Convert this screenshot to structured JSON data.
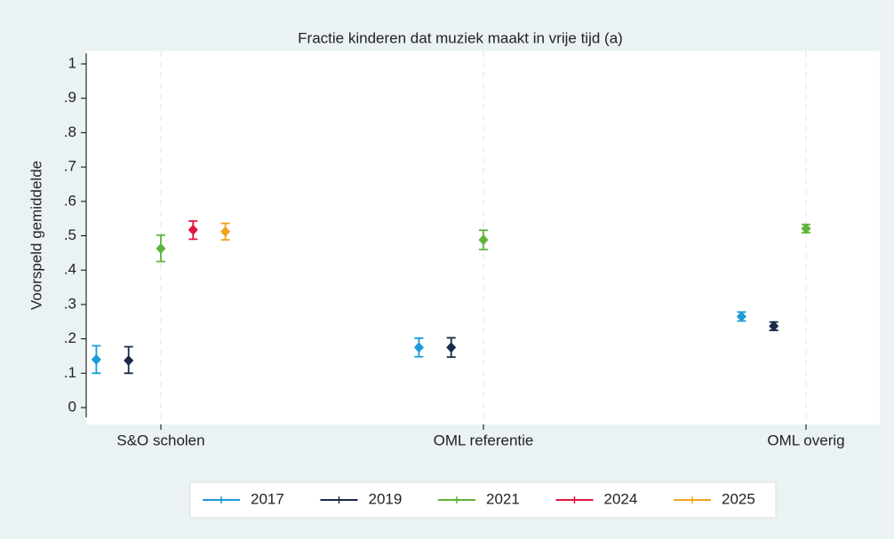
{
  "chart_data": {
    "type": "errorbar",
    "title": "Fractie kinderen dat muziek maakt in vrije tijd (a)",
    "y_label": "Voorspeld gemiddelde",
    "categories": [
      "S&O scholen",
      "OML referentie",
      "OML overig"
    ],
    "series": [
      {
        "name": "2017",
        "color": "#1b9bd7",
        "values": [
          0.14,
          0.175,
          0.265
        ],
        "ci_low": [
          0.1,
          0.148,
          0.252
        ],
        "ci_high": [
          0.18,
          0.202,
          0.278
        ]
      },
      {
        "name": "2019",
        "color": "#1a2a48",
        "values": [
          0.137,
          0.175,
          0.237
        ],
        "ci_low": [
          0.1,
          0.147,
          0.225
        ],
        "ci_high": [
          0.177,
          0.203,
          0.249
        ]
      },
      {
        "name": "2021",
        "color": "#5cb43a",
        "values": [
          0.463,
          0.488,
          0.521
        ],
        "ci_low": [
          0.425,
          0.46,
          0.509
        ],
        "ci_high": [
          0.502,
          0.516,
          0.533
        ]
      },
      {
        "name": "2024",
        "color": "#e0163f",
        "values": [
          0.517,
          null,
          null
        ],
        "ci_low": [
          0.49,
          null,
          null
        ],
        "ci_high": [
          0.543,
          null,
          null
        ]
      },
      {
        "name": "2025",
        "color": "#f2a21f",
        "values": [
          0.512,
          null,
          null
        ],
        "ci_low": [
          0.488,
          null,
          null
        ],
        "ci_high": [
          0.536,
          null,
          null
        ]
      }
    ],
    "ylim": [
      0,
      1
    ],
    "yticks": [
      0,
      {
        "value": 0.1,
        "label": ".1"
      },
      {
        "value": 0.2,
        "label": ".2"
      },
      {
        "value": 0.3,
        "label": ".3"
      },
      {
        "value": 0.4,
        "label": ".4"
      },
      {
        "value": 0.5,
        "label": ".5"
      },
      {
        "value": 0.6,
        "label": ".6"
      },
      {
        "value": 0.7,
        "label": ".7"
      },
      {
        "value": 0.8,
        "label": ".8"
      },
      {
        "value": 0.9,
        "label": ".9"
      },
      1
    ],
    "grid": "x",
    "legend": "bottom"
  }
}
